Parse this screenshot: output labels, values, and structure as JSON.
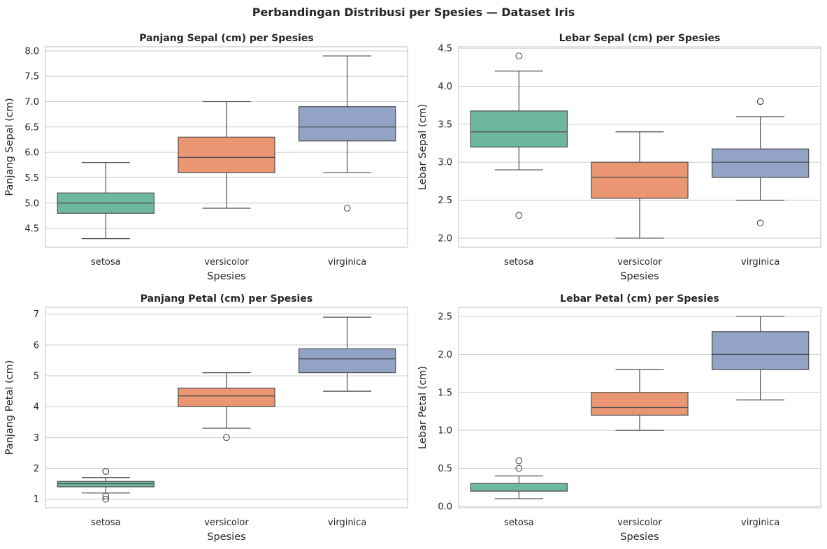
{
  "figure": {
    "suptitle": "Perbandingan Distribusi per Spesies — Dataset Iris"
  },
  "colors": {
    "setosa": "#6fb8a0",
    "versicolor": "#ea9673",
    "virginica": "#92a3c6",
    "line": "#4d4d4d",
    "grid": "#cccccc",
    "spine": "#cccccc"
  },
  "chart_data": [
    {
      "type": "box",
      "title": "Panjang Sepal (cm) per Spesies",
      "xlabel": "Spesies",
      "ylabel": "Panjang Sepal (cm)",
      "categories": [
        "setosa",
        "versicolor",
        "virginica"
      ],
      "ylim": [
        4.13,
        8.08
      ],
      "yticks": [
        4.5,
        5.0,
        5.5,
        6.0,
        6.5,
        7.0,
        7.5,
        8.0
      ],
      "ytick_labels": [
        "4.5",
        "5.0",
        "5.5",
        "6.0",
        "6.5",
        "7.0",
        "7.5",
        "8.0"
      ],
      "grid": true,
      "boxes": [
        {
          "name": "setosa",
          "whislo": 4.3,
          "q1": 4.8,
          "median": 5.0,
          "q3": 5.2,
          "whishi": 5.8,
          "fliers": []
        },
        {
          "name": "versicolor",
          "whislo": 4.9,
          "q1": 5.6,
          "median": 5.9,
          "q3": 6.3,
          "whishi": 7.0,
          "fliers": []
        },
        {
          "name": "virginica",
          "whislo": 5.6,
          "q1": 6.225,
          "median": 6.5,
          "q3": 6.9,
          "whishi": 7.9,
          "fliers": [
            4.9
          ]
        }
      ]
    },
    {
      "type": "box",
      "title": "Lebar Sepal (cm) per Spesies",
      "xlabel": "Spesies",
      "ylabel": "Lebar Sepal (cm)",
      "categories": [
        "setosa",
        "versicolor",
        "virginica"
      ],
      "ylim": [
        1.88,
        4.52
      ],
      "yticks": [
        2.0,
        2.5,
        3.0,
        3.5,
        4.0,
        4.5
      ],
      "ytick_labels": [
        "2.0",
        "2.5",
        "3.0",
        "3.5",
        "4.0",
        "4.5"
      ],
      "grid": true,
      "boxes": [
        {
          "name": "setosa",
          "whislo": 2.9,
          "q1": 3.2,
          "median": 3.4,
          "q3": 3.675,
          "whishi": 4.2,
          "fliers": [
            4.4,
            2.3
          ]
        },
        {
          "name": "versicolor",
          "whislo": 2.0,
          "q1": 2.525,
          "median": 2.8,
          "q3": 3.0,
          "whishi": 3.4,
          "fliers": []
        },
        {
          "name": "virginica",
          "whislo": 2.5,
          "q1": 2.8,
          "median": 3.0,
          "q3": 3.175,
          "whishi": 3.6,
          "fliers": [
            3.8,
            3.8,
            2.2
          ]
        }
      ]
    },
    {
      "type": "box",
      "title": "Panjang Petal (cm) per Spesies",
      "xlabel": "Spesies",
      "ylabel": "Panjang Petal (cm)",
      "categories": [
        "setosa",
        "versicolor",
        "virginica"
      ],
      "ylim": [
        0.72,
        7.22
      ],
      "yticks": [
        1,
        2,
        3,
        4,
        5,
        6,
        7
      ],
      "ytick_labels": [
        "1",
        "2",
        "3",
        "4",
        "5",
        "6",
        "7"
      ],
      "grid": true,
      "boxes": [
        {
          "name": "setosa",
          "whislo": 1.2,
          "q1": 1.4,
          "median": 1.5,
          "q3": 1.575,
          "whishi": 1.7,
          "fliers": [
            1.9,
            1.9,
            1.1,
            1.0
          ]
        },
        {
          "name": "versicolor",
          "whislo": 3.3,
          "q1": 4.0,
          "median": 4.35,
          "q3": 4.6,
          "whishi": 5.1,
          "fliers": [
            3.0
          ]
        },
        {
          "name": "virginica",
          "whislo": 4.5,
          "q1": 5.1,
          "median": 5.55,
          "q3": 5.875,
          "whishi": 6.9,
          "fliers": []
        }
      ]
    },
    {
      "type": "box",
      "title": "Lebar Petal (cm) per Spesies",
      "xlabel": "Spesies",
      "ylabel": "Lebar Petal (cm)",
      "categories": [
        "setosa",
        "versicolor",
        "virginica"
      ],
      "ylim": [
        -0.02,
        2.62
      ],
      "yticks": [
        0.0,
        0.5,
        1.0,
        1.5,
        2.0,
        2.5
      ],
      "ytick_labels": [
        "0.0",
        "0.5",
        "1.0",
        "1.5",
        "2.0",
        "2.5"
      ],
      "grid": true,
      "boxes": [
        {
          "name": "setosa",
          "whislo": 0.1,
          "q1": 0.2,
          "median": 0.2,
          "q3": 0.3,
          "whishi": 0.4,
          "fliers": [
            0.6,
            0.5
          ]
        },
        {
          "name": "versicolor",
          "whislo": 1.0,
          "q1": 1.2,
          "median": 1.3,
          "q3": 1.5,
          "whishi": 1.8,
          "fliers": []
        },
        {
          "name": "virginica",
          "whislo": 1.4,
          "q1": 1.8,
          "median": 2.0,
          "q3": 2.3,
          "whishi": 2.5,
          "fliers": []
        }
      ]
    }
  ]
}
